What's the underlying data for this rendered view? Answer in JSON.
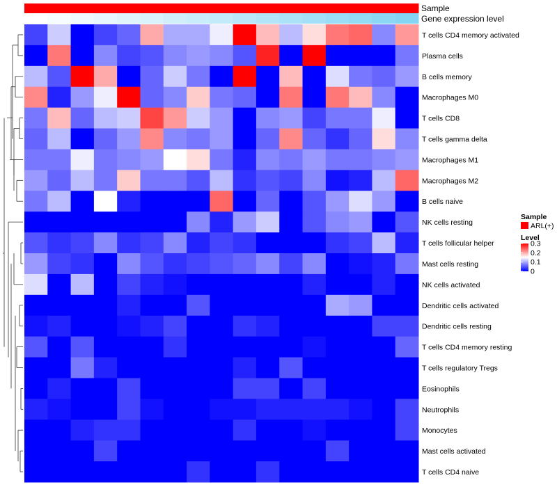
{
  "chart_data": {
    "type": "heatmap",
    "annotations": [
      {
        "label": "Sample",
        "kind": "sample",
        "color": "#ff0000"
      },
      {
        "label": "Gene expression level",
        "kind": "expression",
        "color_low": "#ffffff",
        "color_high": "#7fd3f3",
        "values": [
          0.0,
          0.06,
          0.12,
          0.18,
          0.24,
          0.3,
          0.36,
          0.42,
          0.48,
          0.54,
          0.6,
          0.66,
          0.72,
          0.78,
          0.84,
          0.9,
          0.96
        ]
      }
    ],
    "rows": [
      "T cells CD4 memory activated",
      "Plasma cells",
      "B cells memory",
      "Macrophages M0",
      "T cells CD8",
      "T cells gamma delta",
      "Macrophages M1",
      "Macrophages M2",
      "B cells naive",
      "NK cells resting",
      "T cells follicular helper",
      "Mast cells resting",
      "NK cells activated",
      "Dendritic cells activated",
      "Dendritic cells resting",
      "T cells CD4 memory resting",
      "T cells regulatory  Tregs",
      "Eosinophils",
      "Neutrophils",
      "Monocytes",
      "Mast cells activated",
      "T cells CD4 naive"
    ],
    "columns": 17,
    "values": [
      [
        0.04,
        0.12,
        0.0,
        0.04,
        0.06,
        0.2,
        0.1,
        0.1,
        0.14,
        0.3,
        0.19,
        0.11,
        0.17,
        0.23,
        0.24,
        0.08,
        0.21
      ],
      [
        0.0,
        0.23,
        0.0,
        0.08,
        0.04,
        0.05,
        0.08,
        0.09,
        0.08,
        0.05,
        0.28,
        0.0,
        0.3,
        0.0,
        0.0,
        0.0,
        0.07
      ],
      [
        0.11,
        0.05,
        0.3,
        0.2,
        0.0,
        0.06,
        0.12,
        0.07,
        0.0,
        0.3,
        0.0,
        0.19,
        0.0,
        0.13,
        0.07,
        0.06,
        0.09
      ],
      [
        0.22,
        0.02,
        0.09,
        0.14,
        0.3,
        0.06,
        0.08,
        0.18,
        0.07,
        0.06,
        0.0,
        0.23,
        0.0,
        0.23,
        0.19,
        0.08,
        0.0
      ],
      [
        0.07,
        0.19,
        0.06,
        0.11,
        0.12,
        0.26,
        0.21,
        0.12,
        0.09,
        0.0,
        0.08,
        0.09,
        0.04,
        0.07,
        0.07,
        0.14,
        0.0
      ],
      [
        0.06,
        0.11,
        0.0,
        0.06,
        0.09,
        0.22,
        0.08,
        0.07,
        0.09,
        0.0,
        0.06,
        0.22,
        0.06,
        0.03,
        0.06,
        0.17,
        0.08
      ],
      [
        0.07,
        0.07,
        0.14,
        0.07,
        0.08,
        0.09,
        0.15,
        0.17,
        0.07,
        0.02,
        0.08,
        0.07,
        0.09,
        0.07,
        0.07,
        0.08,
        0.09
      ],
      [
        0.09,
        0.06,
        0.11,
        0.07,
        0.18,
        0.07,
        0.07,
        0.05,
        0.11,
        0.03,
        0.05,
        0.04,
        0.08,
        0.01,
        0.02,
        0.11,
        0.24
      ],
      [
        0.07,
        0.11,
        0.0,
        0.15,
        0.02,
        0.0,
        0.0,
        0.0,
        0.24,
        0.0,
        0.06,
        0.0,
        0.05,
        0.09,
        0.13,
        0.09,
        0.0
      ],
      [
        0.0,
        0.0,
        0.0,
        0.0,
        0.0,
        0.0,
        0.0,
        0.08,
        0.02,
        0.09,
        0.12,
        0.0,
        0.05,
        0.08,
        0.09,
        0.0,
        0.05
      ],
      [
        0.05,
        0.03,
        0.04,
        0.08,
        0.03,
        0.04,
        0.08,
        0.02,
        0.04,
        0.03,
        0.0,
        0.0,
        0.0,
        0.03,
        0.04,
        0.11,
        0.02
      ],
      [
        0.09,
        0.04,
        0.03,
        0.0,
        0.08,
        0.05,
        0.03,
        0.04,
        0.05,
        0.06,
        0.08,
        0.04,
        0.08,
        0.0,
        0.01,
        0.02,
        0.07
      ],
      [
        0.13,
        0.0,
        0.11,
        0.0,
        0.04,
        0.02,
        0.01,
        0.0,
        0.0,
        0.0,
        0.0,
        0.0,
        0.02,
        0.0,
        0.0,
        0.02,
        0.0
      ],
      [
        0.0,
        0.0,
        0.0,
        0.0,
        0.02,
        0.0,
        0.0,
        0.05,
        0.0,
        0.0,
        0.0,
        0.0,
        0.0,
        0.1,
        0.09,
        0.0,
        0.0
      ],
      [
        0.01,
        0.02,
        0.0,
        0.0,
        0.01,
        0.02,
        0.04,
        0.0,
        0.0,
        0.03,
        0.02,
        0.0,
        0.0,
        0.0,
        0.0,
        0.04,
        0.04
      ],
      [
        0.05,
        0.0,
        0.05,
        0.0,
        0.0,
        0.0,
        0.03,
        0.0,
        0.0,
        0.0,
        0.0,
        0.0,
        0.01,
        0.0,
        0.0,
        0.0,
        0.06
      ],
      [
        0.0,
        0.0,
        0.07,
        0.02,
        0.0,
        0.0,
        0.0,
        0.0,
        0.0,
        0.02,
        0.0,
        0.05,
        0.0,
        0.0,
        0.0,
        0.0,
        0.0
      ],
      [
        0.0,
        0.02,
        0.0,
        0.0,
        0.04,
        0.0,
        0.0,
        0.0,
        0.0,
        0.04,
        0.04,
        0.0,
        0.04,
        0.0,
        0.0,
        0.0,
        0.0
      ],
      [
        0.02,
        0.01,
        0.0,
        0.0,
        0.04,
        0.01,
        0.0,
        0.0,
        0.01,
        0.01,
        0.02,
        0.02,
        0.02,
        0.02,
        0.01,
        0.0,
        0.04
      ],
      [
        0.0,
        0.0,
        0.02,
        0.03,
        0.03,
        0.0,
        0.0,
        0.0,
        0.0,
        0.03,
        0.0,
        0.0,
        0.01,
        0.0,
        0.0,
        0.0,
        0.04
      ],
      [
        0.0,
        0.0,
        0.0,
        0.04,
        0.0,
        0.0,
        0.0,
        0.0,
        0.0,
        0.0,
        0.0,
        0.0,
        0.0,
        0.04,
        0.0,
        0.0,
        0.0
      ],
      [
        0.0,
        0.0,
        0.0,
        0.0,
        0.0,
        0.0,
        0.0,
        0.03,
        0.0,
        0.0,
        0.03,
        0.0,
        0.0,
        0.0,
        0.0,
        0.0,
        0.0
      ]
    ],
    "color_scale": {
      "low": "#0000ff",
      "mid": "#ffffff",
      "high": "#ff0000",
      "min": 0,
      "mid_value": 0.15,
      "max": 0.3
    },
    "legends": {
      "sample": {
        "title": "Sample",
        "entries": [
          {
            "label": "ARL(+)",
            "color": "#ff0000"
          }
        ]
      },
      "level": {
        "title": "Level",
        "ticks": [
          {
            "value": 0.3,
            "label": "0.3"
          },
          {
            "value": 0.2,
            "label": "0.2"
          },
          {
            "value": 0.1,
            "label": "0.1"
          },
          {
            "value": 0,
            "label": "0"
          }
        ]
      }
    },
    "dendrogram": "rows",
    "grid": false
  }
}
